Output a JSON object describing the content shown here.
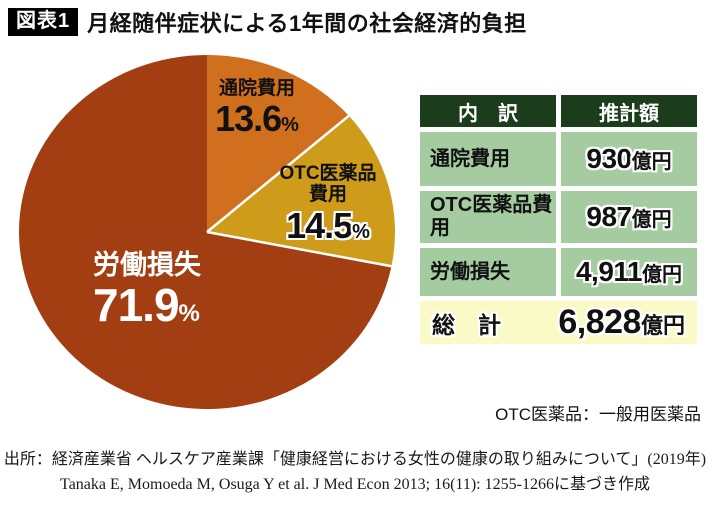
{
  "title": {
    "tag": "図表1",
    "text": "月経随伴症状による1年間の社会経済的負担"
  },
  "chart_data": {
    "type": "pie",
    "title": "月経随伴症状による1年間の社会経済的負担",
    "start_angle_deg": 0,
    "direction": "clockwise",
    "legend_position": "none",
    "slices": [
      {
        "label": "通院費用",
        "pct": 13.6,
        "amount_oku_yen": 930,
        "color": "#d0701e"
      },
      {
        "label": "OTC医薬品費用",
        "pct": 14.5,
        "amount_oku_yen": 987,
        "color": "#cf9b1a"
      },
      {
        "label": "労働損失",
        "pct": 71.9,
        "amount_oku_yen": 4911,
        "color": "#a23e11"
      }
    ],
    "total_oku_yen": 6828
  },
  "pie_labels": {
    "suffix": "%",
    "s0": {
      "name": "通院費用",
      "pct": "13.6"
    },
    "s1": {
      "name1": "OTC医薬品",
      "name2": "費用",
      "pct": "14.5"
    },
    "s2": {
      "name": "労働損失",
      "pct": "71.9"
    }
  },
  "table": {
    "headers": [
      "内　訳",
      "推計額"
    ],
    "rows": [
      {
        "label": "通院費用",
        "amount": "930",
        "unit": "億円"
      },
      {
        "label": "OTC医薬品費用",
        "amount": "987",
        "unit": "億円"
      },
      {
        "label": "労働損失",
        "amount": "4,911",
        "unit": "億円"
      }
    ],
    "total": {
      "label": "総　計",
      "amount": "6,828",
      "unit": "億円"
    },
    "colors": {
      "header_bg": "#1c3d1b",
      "row_bg": "#a5cba0",
      "total_bg": "#fafac6"
    }
  },
  "note": "OTC医薬品：一般用医薬品",
  "source": {
    "line1": "出所：経済産業省 ヘルスケア産業課「健康経営における女性の健康の取り組みについて」(2019年)",
    "line2": "Tanaka E, Momoeda M, Osuga Y et al. J Med Econ 2013; 16(11): 1255-1266に基づき作成"
  },
  "colors": {
    "chip_bg": "#000000",
    "background": "#ffffff"
  }
}
